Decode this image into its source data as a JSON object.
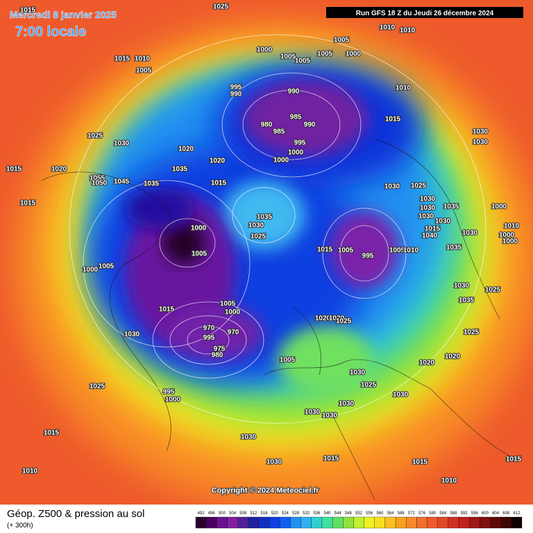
{
  "title": {
    "date": "Mercredi 8 janvier 2025",
    "time": "7:00 locale"
  },
  "run_info": "Run GFS 18 Z du Jeudi 26 décembre 2024",
  "copyright": "Copyright © 2024 Meteociel.fr",
  "caption": {
    "title": "Géop. Z500 & pression au sol",
    "lead": "(+ 300h)"
  },
  "legend": {
    "values": [
      492,
      496,
      500,
      504,
      508,
      512,
      516,
      520,
      524,
      528,
      532,
      536,
      540,
      544,
      548,
      552,
      556,
      560,
      564,
      568,
      572,
      576,
      580,
      584,
      588,
      592,
      596,
      600,
      604,
      608,
      612
    ],
    "colors": [
      "#2a0030",
      "#4a0060",
      "#6a1090",
      "#8020a0",
      "#50209a",
      "#2020a0",
      "#1030c0",
      "#1040e0",
      "#1060f0",
      "#2090f0",
      "#30b0f0",
      "#30d0d0",
      "#40e0a0",
      "#60e060",
      "#90e040",
      "#c0f030",
      "#f0f020",
      "#f8e020",
      "#f8c020",
      "#f8a020",
      "#f88a28",
      "#f07028",
      "#ee5a2c",
      "#e04828",
      "#d03020",
      "#c02020",
      "#a01818",
      "#801010",
      "#600808",
      "#400404",
      "#100000"
    ]
  },
  "pressure_labels": [
    "1025",
    "1015",
    "1015",
    "1010",
    "1005",
    "1000",
    "1005",
    "1005",
    "1005",
    "1005",
    "1000",
    "1010",
    "1010",
    "995",
    "990",
    "990",
    "980",
    "985",
    "985",
    "990",
    "995",
    "1000",
    "1000",
    "1010",
    "1015",
    "1030",
    "1030",
    "1025",
    "1030",
    "1020",
    "1020",
    "1035",
    "1015",
    "1020",
    "1055",
    "1050",
    "1045",
    "1035",
    "1015",
    "1030",
    "1025",
    "1030",
    "1030",
    "1035",
    "1000",
    "1015",
    "1035",
    "1030",
    "1025",
    "1000",
    "1005",
    "1015",
    "1005",
    "995",
    "1005",
    "1010",
    "1030",
    "1030",
    "1015",
    "1040",
    "1030",
    "1035",
    "1010",
    "1000",
    "1000",
    "1000",
    "1005",
    "1030",
    "1025",
    "1035",
    "1015",
    "1005",
    "1000",
    "1020",
    "1020",
    "1025",
    "970",
    "995",
    "975",
    "980",
    "970",
    "1030",
    "1025",
    "1005",
    "1020",
    "1020",
    "1030",
    "1025",
    "1030",
    "1030",
    "1025",
    "995",
    "1000",
    "1030",
    "1030",
    "1015",
    "1030",
    "1030",
    "1015",
    "1015",
    "1015",
    "1010",
    "1010"
  ]
}
